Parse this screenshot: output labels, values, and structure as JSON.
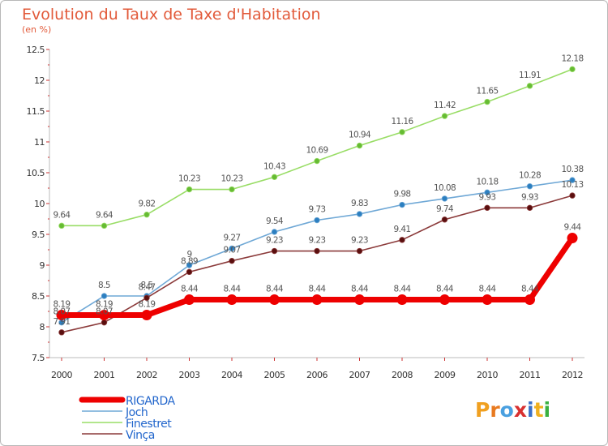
{
  "title": "Evolution du Taux de Taxe d'Habitation",
  "subtitle": "(en %)",
  "logo_text": "Proxiti",
  "logo_colors": [
    "#f0a020",
    "#e87a20",
    "#4aa0e0",
    "#d83030",
    "#3a70c8",
    "#f0b020",
    "#3ab040"
  ],
  "chart_data": {
    "type": "line",
    "title": "Evolution du Taux de Taxe d'Habitation",
    "subtitle": "(en %)",
    "xlabel": "",
    "ylabel": "",
    "ylim": [
      7.5,
      12.5
    ],
    "yticks": [
      "7.5",
      "8",
      "8.5",
      "9",
      "9.5",
      "10",
      "10.5",
      "11",
      "11.5",
      "12",
      "12.5"
    ],
    "categories": [
      "2000",
      "2001",
      "2002",
      "2003",
      "2004",
      "2005",
      "2006",
      "2007",
      "2008",
      "2009",
      "2010",
      "2011",
      "2012"
    ],
    "grid": false,
    "legend_placement": "bottom-left",
    "series": [
      {
        "name": "RIGARDA",
        "color": "#ee0000",
        "weight": "thick",
        "values": [
          8.19,
          8.19,
          8.19,
          8.44,
          8.44,
          8.44,
          8.44,
          8.44,
          8.44,
          8.44,
          8.44,
          8.44,
          9.44
        ],
        "labels": [
          "8.19",
          "8.19",
          "8.19",
          "8.44",
          "8.44",
          "8.44",
          "8.44",
          "8.44",
          "8.44",
          "8.44",
          "8.44",
          "8.44",
          "9.44"
        ]
      },
      {
        "name": "Joch",
        "color": "#6fa8d6",
        "marker": "#2c7fc0",
        "weight": "thin",
        "values": [
          8.07,
          8.5,
          8.5,
          9.0,
          9.27,
          9.54,
          9.73,
          9.83,
          9.98,
          10.08,
          10.18,
          10.28,
          10.38
        ],
        "labels": [
          "8.07",
          "8.5",
          "8.5",
          "9",
          "9.27",
          "9.54",
          "9.73",
          "9.83",
          "9.98",
          "10.08",
          "10.18",
          "10.28",
          "10.38"
        ]
      },
      {
        "name": "Finestret",
        "color": "#99dd66",
        "marker": "#66bb33",
        "weight": "thin",
        "values": [
          9.64,
          9.64,
          9.82,
          10.23,
          10.23,
          10.43,
          10.69,
          10.94,
          11.16,
          11.42,
          11.65,
          11.91,
          12.18
        ],
        "labels": [
          "9.64",
          "9.64",
          "9.82",
          "10.23",
          "10.23",
          "10.43",
          "10.69",
          "10.94",
          "11.16",
          "11.42",
          "11.65",
          "11.91",
          "12.18"
        ]
      },
      {
        "name": "Vinça",
        "color": "#8b3a3a",
        "marker": "#5a0f0f",
        "weight": "thin",
        "values": [
          7.91,
          8.07,
          8.47,
          8.89,
          9.07,
          9.23,
          9.23,
          9.23,
          9.41,
          9.74,
          9.93,
          9.93,
          10.13
        ],
        "labels": [
          "7.91",
          "8.07",
          "8.47",
          "8.89",
          "9.07",
          "9.23",
          "9.23",
          "9.23",
          "9.41",
          "9.74",
          "9.93",
          "9.93",
          "10.13"
        ]
      }
    ]
  }
}
